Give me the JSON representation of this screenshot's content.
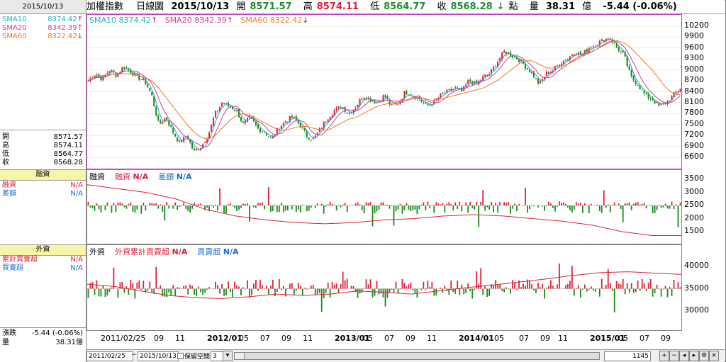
{
  "header": {
    "index_name": "加權指數",
    "period": "日線圖",
    "date": "2015/10/13",
    "open_label": "開",
    "open": "8571.57",
    "high_label": "高",
    "high": "8574.11",
    "low_label": "低",
    "low": "8564.77",
    "close_label": "收",
    "close": "8568.28",
    "point_label": "點",
    "volume_label": "量",
    "volume": "38.31",
    "volume_unit": "億",
    "change": "-5.44 (-0.06%)"
  },
  "left": {
    "date": "2015/10/13",
    "sma": [
      {
        "label": "SMA10",
        "value": "8374.42",
        "dir": "↑"
      },
      {
        "label": "SMA20",
        "value": "8342.39",
        "dir": "↑"
      },
      {
        "label": "SMA60",
        "value": "8322.42",
        "dir": "↓"
      }
    ],
    "ohlc": [
      {
        "label": "開",
        "value": "8571.57"
      },
      {
        "label": "高",
        "value": "8574.11"
      },
      {
        "label": "低",
        "value": "8564.77"
      },
      {
        "label": "收",
        "value": "8568.28"
      }
    ],
    "margin_title": "融資",
    "margin_rows": [
      {
        "label": "融資",
        "value": "N/A"
      },
      {
        "label": "差額",
        "value": "N/A"
      }
    ],
    "foreign_title": "外資",
    "foreign_rows": [
      {
        "label": "累計買賣超",
        "value": "N/A"
      },
      {
        "label": "買賣超",
        "value": "N/A"
      }
    ],
    "change_label": "漲跌",
    "change_value": "-5.44 (-0.06%)",
    "volume_label": "量",
    "volume_value": "38.31億"
  },
  "price_legend": {
    "sma10": "SMA10 8374.42",
    "sma10_dir": "↑",
    "sma20": "SMA20 8342.39",
    "sma20_dir": "↑",
    "sma60": "SMA60 8322.42",
    "sma60_dir": "↓"
  },
  "margin_legend": {
    "title": "融資",
    "m1": "融資",
    "m1v": "N/A",
    "m2": "差額",
    "m2v": "N/A"
  },
  "foreign_legend": {
    "title": "外資",
    "f1": "外資累計買賣超",
    "f1v": "N/A",
    "f2": "買賣超",
    "f2v": "N/A"
  },
  "bottom": {
    "from": "2011/02/25",
    "tilde": "~",
    "to": "2015/10/13",
    "keep": "保留空間",
    "keep_val": "3",
    "count": "1145"
  },
  "colors": {
    "up": "#e0203a",
    "down": "#1a8a1a",
    "sma10": "#1ab0c8",
    "sma20": "#d63d92",
    "sma60": "#f07a2c",
    "frame": "#c040c0"
  },
  "chart_data": [
    {
      "type": "line",
      "name": "price",
      "y_ticks": [
        "10200",
        "9900",
        "9600",
        "9300",
        "9000",
        "8700",
        "8400",
        "8100",
        "7800",
        "7500",
        "7200",
        "6900",
        "6600"
      ],
      "ylim": [
        6450,
        10350
      ],
      "x_labels": [
        "2011/02/25",
        "09",
        "11",
        "2012/01",
        "05",
        "07",
        "09",
        "11",
        "2013/01",
        "05",
        "07",
        "09",
        "11",
        "2014/01",
        "05",
        "07",
        "09",
        "11",
        "2015/01",
        "05",
        "07",
        "09"
      ],
      "close_series": [
        8700,
        8900,
        8750,
        9000,
        8850,
        9100,
        8950,
        8800,
        8700,
        8300,
        7500,
        7700,
        7300,
        7000,
        7200,
        6750,
        6900,
        7200,
        7800,
        8100,
        8000,
        7900,
        7500,
        7700,
        7400,
        7300,
        7100,
        7400,
        7600,
        7700,
        7500,
        7200,
        7100,
        7400,
        7700,
        7900,
        8000,
        7800,
        8000,
        8300,
        8200,
        8100,
        8300,
        8000,
        8100,
        8400,
        8300,
        8200,
        8000,
        8100,
        8300,
        8400,
        8500,
        8400,
        8700,
        8600,
        8800,
        8900,
        9200,
        9500,
        9400,
        9300,
        9100,
        8900,
        8600,
        8900,
        9000,
        9200,
        9300,
        9500,
        9400,
        9600,
        9700,
        9800,
        9900,
        9600,
        9400,
        8800,
        8600,
        8300,
        8200,
        8000,
        8100,
        8300,
        8500
      ],
      "sma60_series": [
        8800,
        8820,
        8850,
        8870,
        8880,
        8900,
        8880,
        8850,
        8800,
        8700,
        8500,
        8250,
        8000,
        7750,
        7500,
        7300,
        7150,
        7100,
        7200,
        7400,
        7600,
        7750,
        7800,
        7750,
        7650,
        7550,
        7450,
        7350,
        7350,
        7400,
        7450,
        7450,
        7400,
        7350,
        7350,
        7450,
        7550,
        7650,
        7700,
        7800,
        7900,
        8000,
        8050,
        8100,
        8100,
        8150,
        8200,
        8250,
        8200,
        8150,
        8200,
        8250,
        8300,
        8350,
        8400,
        8450,
        8500,
        8600,
        8700,
        8850,
        9000,
        9150,
        9250,
        9250,
        9150,
        9050,
        9050,
        9100,
        9150,
        9250,
        9350,
        9450,
        9550,
        9650,
        9750,
        9800,
        9750,
        9600,
        9400,
        9200,
        9000,
        8750,
        8500,
        8350,
        8320
      ]
    },
    {
      "type": "bar",
      "name": "margin",
      "y_ticks": [
        "3500",
        "3000",
        "2500",
        "2000",
        "1500"
      ],
      "ylim": [
        1200,
        3700
      ]
    },
    {
      "type": "bar",
      "name": "foreign",
      "y_ticks": [
        "40000",
        "35000",
        "30000"
      ],
      "ylim": [
        27000,
        43500
      ]
    }
  ]
}
